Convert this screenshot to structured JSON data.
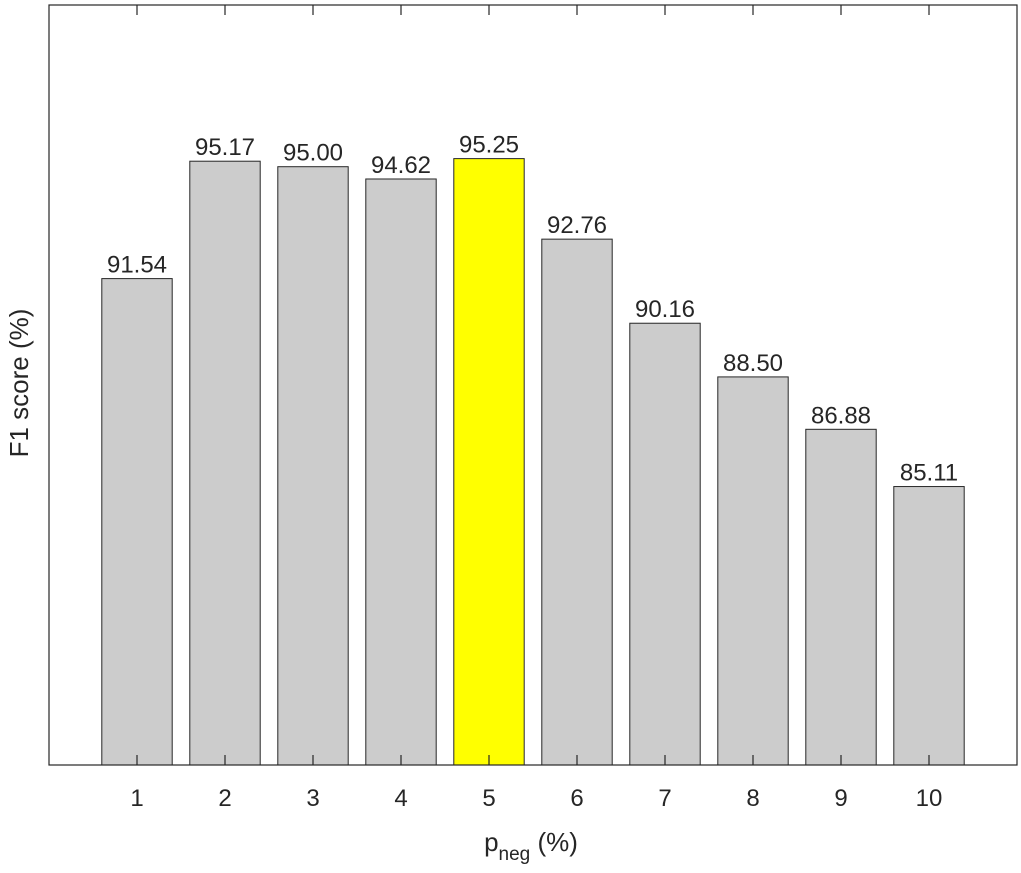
{
  "chart_data": {
    "type": "bar",
    "categories": [
      "1",
      "2",
      "3",
      "4",
      "5",
      "6",
      "7",
      "8",
      "9",
      "10"
    ],
    "values": [
      91.54,
      95.17,
      95.0,
      94.62,
      95.25,
      92.76,
      90.16,
      88.5,
      86.88,
      85.11
    ],
    "value_labels": [
      "91.54",
      "95.17",
      "95.00",
      "94.62",
      "95.25",
      "92.76",
      "90.16",
      "88.50",
      "86.88",
      "85.11"
    ],
    "xlabel": {
      "main": "p",
      "sub": "neg",
      "suffix": " (%)"
    },
    "ylabel": "F1 score (%)",
    "xlim": [
      0,
      11
    ],
    "ylim": [
      76.5,
      100
    ],
    "highlight_index": 4,
    "colors": {
      "bar": "#cccccc",
      "highlight": "#ffff00",
      "edge": "#262626",
      "axis": "#262626"
    },
    "grid": false,
    "y_tick_labels": false
  }
}
